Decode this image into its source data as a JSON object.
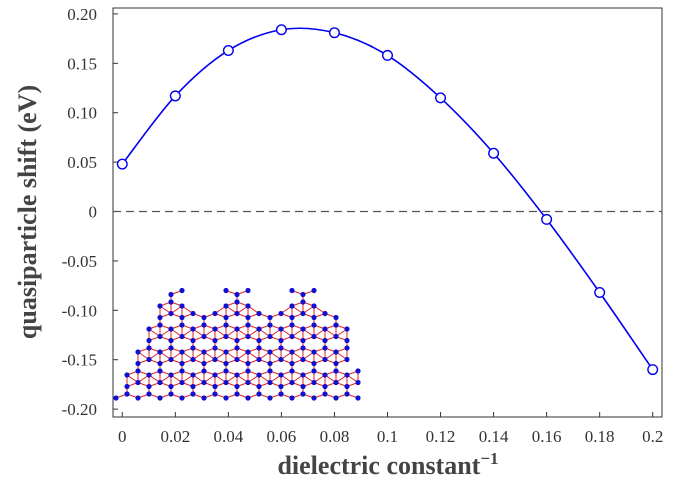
{
  "chart_data": {
    "type": "line",
    "xlabel": "dielectric constant",
    "xlabel_superscript": "−1",
    "ylabel": "quasiparticle shift (eV)",
    "x": [
      0,
      0.02,
      0.04,
      0.06,
      0.08,
      0.1,
      0.12,
      0.14,
      0.16,
      0.18,
      0.2
    ],
    "series": [
      {
        "color": "#0000ee",
        "values": [
          0.048,
          0.117,
          0.163,
          0.184,
          0.181,
          0.158,
          0.115,
          0.059,
          -0.008,
          -0.082,
          -0.16
        ]
      }
    ],
    "reference_line": 0,
    "xlim": [
      -0.0035,
      0.2035
    ],
    "ylim": [
      -0.208,
      0.206
    ],
    "xticks": [
      0,
      0.02,
      0.04,
      0.06,
      0.08,
      0.1,
      0.12,
      0.14,
      0.16,
      0.18,
      0.2
    ],
    "yticks": [
      {
        "value": 0.2,
        "label": "0.20"
      },
      0.15,
      {
        "value": 0.1,
        "label": "0.10"
      },
      0.05,
      0,
      -0.05,
      {
        "value": -0.1,
        "label": "-0.10"
      },
      -0.15,
      {
        "value": -0.2,
        "label": "-0.20"
      }
    ],
    "smooth": true,
    "markers": "open-circle"
  }
}
